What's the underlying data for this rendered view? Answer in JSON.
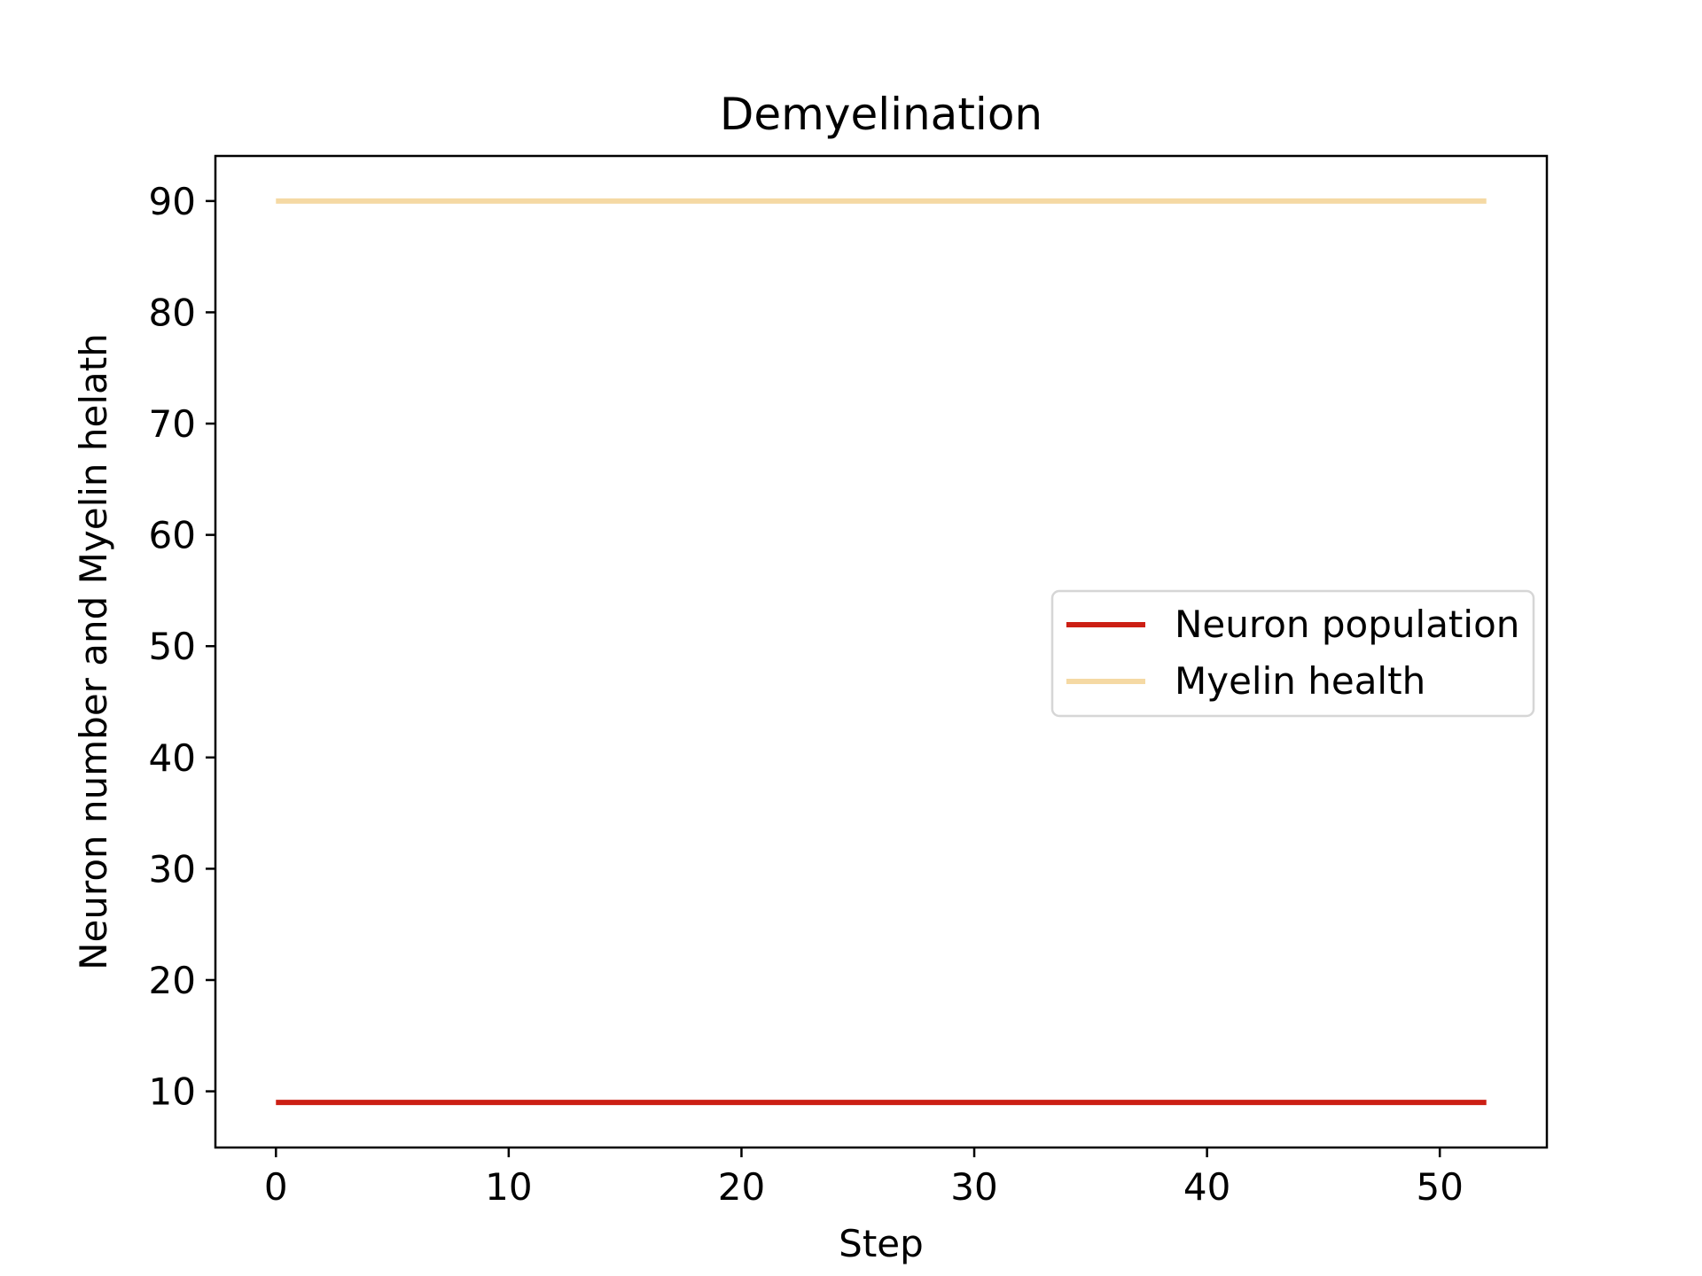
{
  "chart_data": {
    "type": "line",
    "title": "Demyelination",
    "xlabel": "Step",
    "ylabel": "Neuron number and Myelin helath",
    "xlim": [
      -2.6,
      54.6
    ],
    "ylim": [
      4.95,
      94.05
    ],
    "xticks": [
      0,
      10,
      20,
      30,
      40,
      50
    ],
    "yticks": [
      10,
      20,
      30,
      40,
      50,
      60,
      70,
      80,
      90
    ],
    "grid": false,
    "legend_position": "center-right",
    "x": [
      0,
      52
    ],
    "series": [
      {
        "name": "Neuron population",
        "values": [
          9,
          9
        ],
        "color": "#cc1f14"
      },
      {
        "name": "Myelin health",
        "values": [
          90,
          90
        ],
        "color": "#f5d9a4"
      }
    ]
  }
}
